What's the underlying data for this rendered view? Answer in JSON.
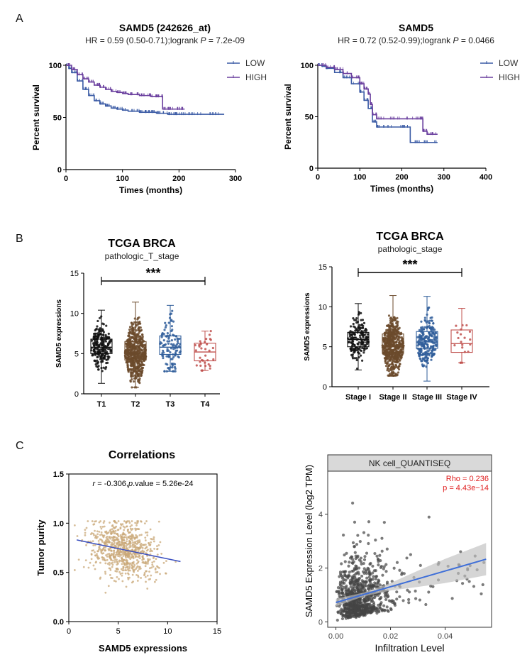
{
  "panel_labels": [
    "A",
    "B",
    "C"
  ],
  "colors": {
    "low": "#3b5ba5",
    "high": "#6a3f9e",
    "t1": "#111111",
    "t2": "#6b4a2b",
    "t3": "#2f5d9a",
    "t4": "#c0504d",
    "scatter_tan": "#c9a878",
    "reg_blue": "#3a4fc0",
    "nk_point": "#444444",
    "nk_line": "#3f6fd8",
    "nk_ci": "#bfbfbf",
    "nk_header": "#d9d9d9",
    "rho_red": "#e02020"
  },
  "chart_data": [
    {
      "id": "km1",
      "type": "line",
      "title": "SAMD5 (242626_at)",
      "subtitle_pre": "HR = 0.59 (0.50-0.71);logrank ",
      "subtitle_p": "P",
      "subtitle_post": " = 7.2e-09",
      "xlabel": "Times (months)",
      "ylabel": "Percent survival",
      "xlim": [
        0,
        300
      ],
      "ylim": [
        0,
        100
      ],
      "xticks": [
        0,
        100,
        200,
        300
      ],
      "yticks": [
        0,
        50,
        100
      ],
      "legend": [
        "LOW",
        "HIGH"
      ],
      "series": [
        {
          "name": "LOW",
          "x": [
            0,
            5,
            10,
            20,
            30,
            40,
            50,
            60,
            70,
            80,
            90,
            100,
            110,
            120,
            130,
            140,
            150,
            160,
            170,
            180,
            190,
            200,
            220,
            240,
            260,
            280
          ],
          "y": [
            100,
            97,
            93,
            85,
            77,
            71,
            66,
            63,
            61,
            59,
            58,
            57,
            56,
            56,
            55,
            55,
            55,
            54,
            54,
            53,
            53,
            53,
            53,
            53,
            53,
            53
          ]
        },
        {
          "name": "HIGH",
          "x": [
            0,
            10,
            20,
            30,
            40,
            50,
            60,
            70,
            80,
            90,
            100,
            110,
            120,
            130,
            140,
            150,
            160,
            170,
            171,
            180,
            190,
            200,
            210
          ],
          "y": [
            100,
            96,
            91,
            87,
            84,
            81,
            79,
            77,
            75,
            74,
            73,
            72,
            72,
            71,
            71,
            70,
            70,
            70,
            58,
            58,
            58,
            58,
            58
          ]
        }
      ]
    },
    {
      "id": "km2",
      "type": "line",
      "title": "SAMD5",
      "subtitle_pre": "HR = 0.72 (0.52-0.99);logrank ",
      "subtitle_p": "P",
      "subtitle_post": " = 0.0466",
      "xlabel": "Times (months)",
      "ylabel": "Percent survival",
      "xlim": [
        0,
        400
      ],
      "ylim": [
        0,
        100
      ],
      "xticks": [
        0,
        100,
        200,
        300,
        400
      ],
      "yticks": [
        0,
        50,
        100
      ],
      "legend": [
        "LOW",
        "HIGH"
      ],
      "series": [
        {
          "name": "LOW",
          "x": [
            0,
            10,
            20,
            40,
            60,
            80,
            100,
            110,
            120,
            130,
            140,
            160,
            200,
            220,
            240,
            260,
            285
          ],
          "y": [
            100,
            99,
            97,
            93,
            88,
            82,
            74,
            66,
            58,
            45,
            40,
            40,
            40,
            25,
            25,
            25,
            25
          ]
        },
        {
          "name": "HIGH",
          "x": [
            0,
            20,
            40,
            60,
            80,
            100,
            110,
            120,
            125,
            130,
            140,
            150,
            200,
            240,
            250,
            260,
            285
          ],
          "y": [
            100,
            98,
            96,
            92,
            88,
            82,
            77,
            72,
            62,
            52,
            48,
            48,
            48,
            48,
            36,
            33,
            33
          ]
        }
      ]
    },
    {
      "id": "box1",
      "type": "box",
      "title": "TCGA BRCA",
      "subtitle": "pathologic_T_stage",
      "ylabel": "SAMD5 expressions",
      "ylim": [
        0,
        15
      ],
      "yticks": [
        0,
        5,
        10,
        15
      ],
      "significance": "***",
      "categories": [
        "T1",
        "T2",
        "T3",
        "T4"
      ],
      "stats": [
        {
          "min": 1.3,
          "q1": 5.0,
          "median": 5.8,
          "q3": 6.8,
          "max": 10.4,
          "n": 220
        },
        {
          "min": 0.8,
          "q1": 4.2,
          "median": 5.1,
          "q3": 6.5,
          "max": 11.4,
          "n": 560
        },
        {
          "min": 2.8,
          "q1": 4.9,
          "median": 5.8,
          "q3": 7.2,
          "max": 11.0,
          "n": 110
        },
        {
          "min": 2.9,
          "q1": 4.1,
          "median": 5.2,
          "q3": 6.3,
          "max": 7.8,
          "n": 35
        }
      ]
    },
    {
      "id": "box2",
      "type": "box",
      "title": "TCGA BRCA",
      "subtitle": "pathologic_stage",
      "ylabel": "SAMD5 expressions",
      "ylim": [
        0,
        15
      ],
      "yticks": [
        0,
        5,
        10,
        15
      ],
      "significance": "***",
      "categories": [
        "Stage I",
        "Stage II",
        "Stage III",
        "Stage IV"
      ],
      "stats": [
        {
          "min": 2.1,
          "q1": 5.0,
          "median": 5.9,
          "q3": 6.8,
          "max": 10.4,
          "n": 170
        },
        {
          "min": 1.4,
          "q1": 4.3,
          "median": 5.0,
          "q3": 6.6,
          "max": 11.4,
          "n": 560
        },
        {
          "min": 0.7,
          "q1": 4.8,
          "median": 5.6,
          "q3": 6.9,
          "max": 11.3,
          "n": 230
        },
        {
          "min": 3.0,
          "q1": 4.3,
          "median": 5.4,
          "q3": 7.1,
          "max": 9.8,
          "n": 20
        }
      ]
    },
    {
      "id": "corr",
      "type": "scatter",
      "title": "Correlations",
      "annotation_r": "r",
      "annotation_mid": " = -0.306,",
      "annotation_p": "p",
      "annotation_post": ".value = 5.26e-24",
      "xlabel": "SAMD5 expressions",
      "ylabel": "Tumor purity",
      "xlim": [
        0,
        15
      ],
      "ylim": [
        0,
        1.5
      ],
      "xticks": [
        0,
        5,
        10,
        15
      ],
      "yticks": [
        0.0,
        0.5,
        1.0,
        1.5
      ],
      "ytick_labels": [
        "0.0",
        "0.5",
        "1.0",
        "1.5"
      ],
      "n_points": 800,
      "x_mean": 5.5,
      "x_sd": 1.7,
      "y_mean": 0.74,
      "y_sd": 0.14,
      "fit": {
        "x": [
          0.8,
          11.3
        ],
        "y": [
          0.83,
          0.61
        ]
      }
    },
    {
      "id": "nk",
      "type": "scatter",
      "facet": "NK cell_QUANTISEQ",
      "rho": "Rho = 0.236",
      "p": "p = 4.43e−14",
      "xlabel": "Infiltration Level",
      "ylabel": "SAMD5 Expression Level (log2 TPM)",
      "xlim": [
        -0.003,
        0.057
      ],
      "ylim": [
        -0.2,
        5.6
      ],
      "xticks": [
        0.0,
        0.02,
        0.04
      ],
      "xtick_labels": [
        "0.00",
        "0.02",
        "0.04"
      ],
      "yticks": [
        0,
        2,
        4
      ],
      "ytick_labels": [
        "0",
        "2",
        "4"
      ],
      "n_points": 850,
      "fit": {
        "x": [
          0.0,
          0.055
        ],
        "y": [
          0.72,
          2.33
        ]
      },
      "ci_half": {
        "x": [
          0.0,
          0.01,
          0.02,
          0.03,
          0.04,
          0.055
        ],
        "h": [
          0.14,
          0.07,
          0.14,
          0.3,
          0.45,
          0.6
        ]
      }
    }
  ]
}
